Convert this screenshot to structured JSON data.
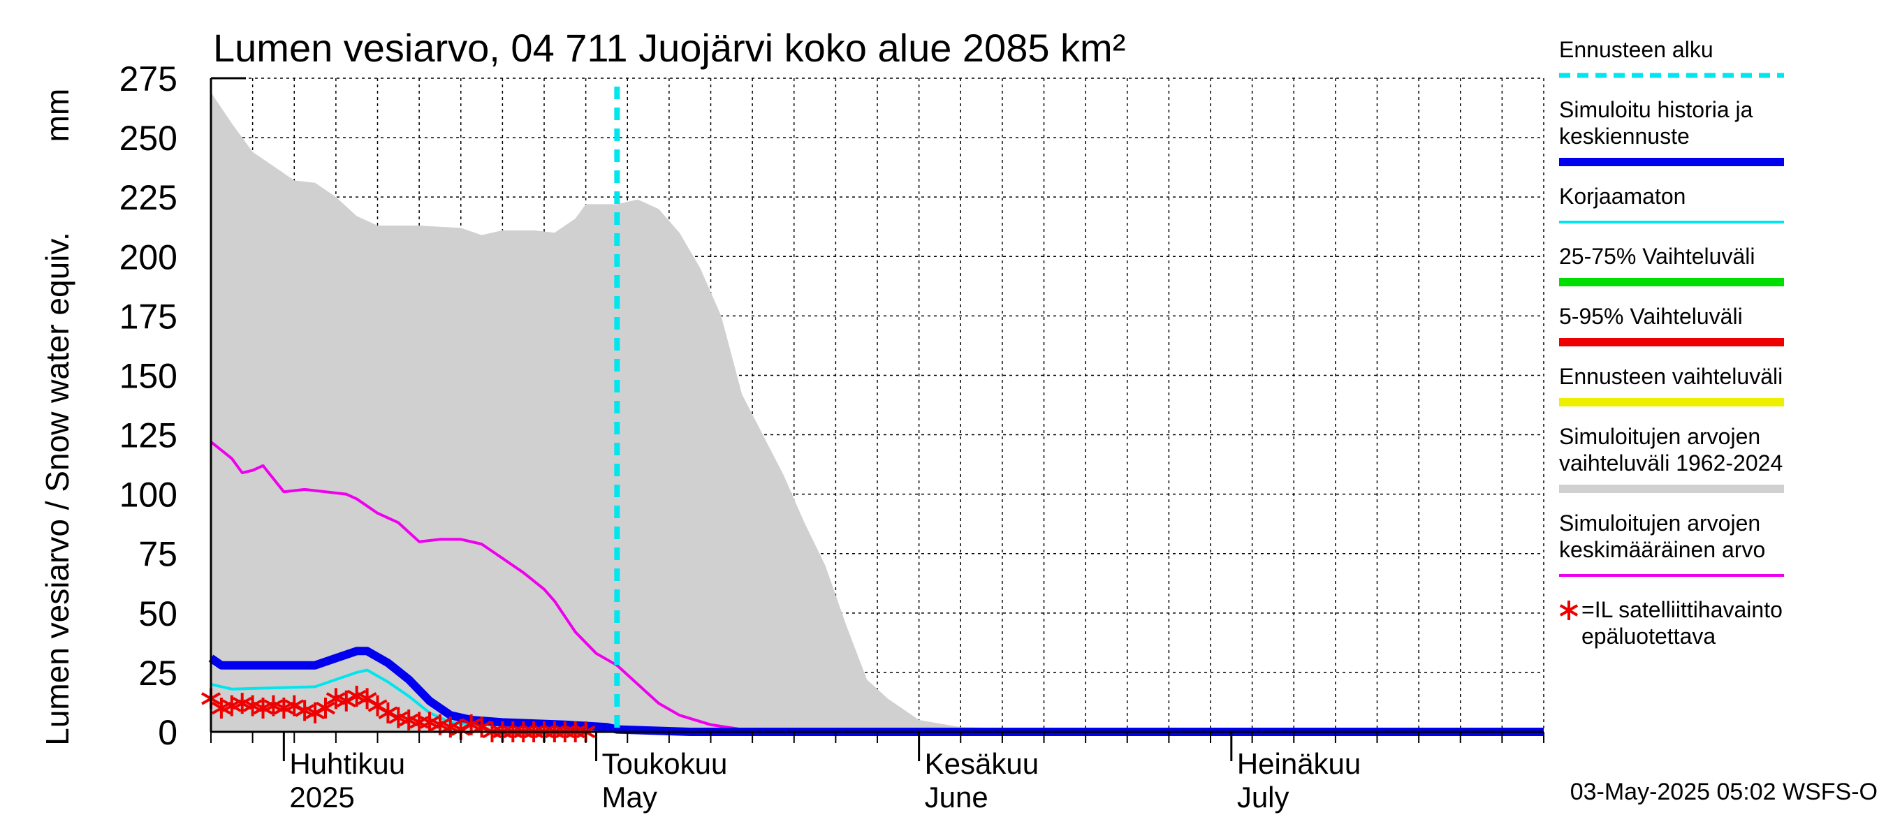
{
  "chart_data": {
    "type": "area",
    "title": "Lumen vesiarvo, 04 711 Juojärvi koko alue 2085 km²",
    "ylabel": "Lumen vesiarvo / Snow water equiv.",
    "yunit": "mm",
    "ylim": [
      0,
      275
    ],
    "yticks": [
      "0",
      "25",
      "50",
      "75",
      "100",
      "125",
      "150",
      "175",
      "200",
      "225",
      "250",
      "275"
    ],
    "xlim": [
      "2025-03-25",
      "2025-07-31"
    ],
    "months": [
      {
        "top": "Huhtikuu",
        "bottom": "2025",
        "start": "2025-04-01"
      },
      {
        "top": "Toukokuu",
        "bottom": "May",
        "start": "2025-05-01"
      },
      {
        "top": "Kesäkuu",
        "bottom": "June",
        "start": "2025-06-01"
      },
      {
        "top": "Heinäkuu",
        "bottom": "July",
        "start": "2025-07-01"
      }
    ],
    "forecast_start": "2025-05-03",
    "grid": true,
    "legend_position": "right",
    "footer": "03-May-2025 05:02 WSFS-O",
    "legend": [
      {
        "label": "Ennusteen alku",
        "color": "#00e5ee",
        "style": "dashed"
      },
      {
        "label": "Simuloitu historia ja keskiennuste",
        "color": "#0000ee",
        "style": "thick"
      },
      {
        "label": "Korjaamaton",
        "color": "#00e5ee",
        "style": "line"
      },
      {
        "label": "25-75% Vaihteluväli",
        "color": "#00dd00",
        "style": "thick"
      },
      {
        "label": "5-95% Vaihteluväli",
        "color": "#ee0000",
        "style": "thick"
      },
      {
        "label": "Ennusteen vaihteluväli",
        "color": "#eeee00",
        "style": "thick"
      },
      {
        "label": "Simuloitujen arvojen vaihteluväli 1962-2024",
        "color": "#d0d0d0",
        "style": "thick"
      },
      {
        "label": "Simuloitujen arvojen keskimääräinen arvo",
        "color": "#ee00ee",
        "style": "line"
      },
      {
        "label": "=IL satelliittihavainto epäluotettava",
        "color": "#ee0000",
        "style": "star"
      }
    ],
    "series": [
      {
        "name": "Simuloitujen arvojen vaihteluväli 1962-2024",
        "type": "band",
        "color": "#d0d0d0",
        "points": [
          [
            "2025-03-25",
            0,
            269
          ],
          [
            "2025-03-27",
            0,
            256
          ],
          [
            "2025-03-29",
            0,
            244
          ],
          [
            "2025-03-31",
            0,
            238
          ],
          [
            "2025-04-02",
            0,
            232
          ],
          [
            "2025-04-04",
            0,
            231
          ],
          [
            "2025-04-06",
            0,
            225
          ],
          [
            "2025-04-08",
            0,
            217
          ],
          [
            "2025-04-10",
            0,
            213
          ],
          [
            "2025-04-14",
            0,
            213
          ],
          [
            "2025-04-18",
            0,
            212
          ],
          [
            "2025-04-20",
            0,
            209
          ],
          [
            "2025-04-22",
            0,
            211
          ],
          [
            "2025-04-25",
            0,
            211
          ],
          [
            "2025-04-27",
            0,
            210
          ],
          [
            "2025-04-29",
            0,
            216
          ],
          [
            "2025-04-30",
            0,
            222
          ],
          [
            "2025-05-03",
            0,
            222
          ],
          [
            "2025-05-05",
            0,
            224
          ],
          [
            "2025-05-07",
            0,
            220
          ],
          [
            "2025-05-09",
            0,
            210
          ],
          [
            "2025-05-11",
            0,
            195
          ],
          [
            "2025-05-13",
            0,
            175
          ],
          [
            "2025-05-15",
            0,
            142
          ],
          [
            "2025-05-17",
            0,
            125
          ],
          [
            "2025-05-19",
            0,
            108
          ],
          [
            "2025-05-21",
            0,
            88
          ],
          [
            "2025-05-23",
            0,
            70
          ],
          [
            "2025-05-25",
            0,
            45
          ],
          [
            "2025-05-27",
            0,
            22
          ],
          [
            "2025-05-29",
            0,
            14
          ],
          [
            "2025-06-01",
            0,
            5
          ],
          [
            "2025-06-05",
            0,
            2
          ],
          [
            "2025-06-15",
            0,
            1
          ],
          [
            "2025-07-31",
            0,
            1
          ]
        ]
      },
      {
        "name": "Simuloitujen arvojen keskimääräinen arvo",
        "type": "line",
        "color": "#ee00ee",
        "points": [
          [
            "2025-03-25",
            122
          ],
          [
            "2025-03-27",
            115
          ],
          [
            "2025-03-28",
            109
          ],
          [
            "2025-03-29",
            110
          ],
          [
            "2025-03-30",
            112
          ],
          [
            "2025-04-01",
            101
          ],
          [
            "2025-04-03",
            102
          ],
          [
            "2025-04-05",
            101
          ],
          [
            "2025-04-07",
            100
          ],
          [
            "2025-04-08",
            98
          ],
          [
            "2025-04-10",
            92
          ],
          [
            "2025-04-12",
            88
          ],
          [
            "2025-04-14",
            80
          ],
          [
            "2025-04-16",
            81
          ],
          [
            "2025-04-18",
            81
          ],
          [
            "2025-04-20",
            79
          ],
          [
            "2025-04-22",
            73
          ],
          [
            "2025-04-24",
            67
          ],
          [
            "2025-04-26",
            60
          ],
          [
            "2025-04-27",
            55
          ],
          [
            "2025-04-29",
            42
          ],
          [
            "2025-05-01",
            33
          ],
          [
            "2025-05-03",
            28
          ],
          [
            "2025-05-05",
            20
          ],
          [
            "2025-05-07",
            12
          ],
          [
            "2025-05-09",
            7
          ],
          [
            "2025-05-12",
            3
          ],
          [
            "2025-05-15",
            1
          ],
          [
            "2025-05-20",
            0
          ],
          [
            "2025-07-31",
            0
          ]
        ]
      },
      {
        "name": "Korjaamaton",
        "type": "line",
        "color": "#00e5ee",
        "points": [
          [
            "2025-03-25",
            20
          ],
          [
            "2025-03-27",
            18
          ],
          [
            "2025-04-04",
            19
          ],
          [
            "2025-04-06",
            22
          ],
          [
            "2025-04-08",
            25
          ],
          [
            "2025-04-09",
            26
          ],
          [
            "2025-04-11",
            21
          ],
          [
            "2025-04-13",
            15
          ],
          [
            "2025-04-15",
            8
          ],
          [
            "2025-04-17",
            4
          ],
          [
            "2025-04-19",
            3
          ],
          [
            "2025-04-22",
            3
          ],
          [
            "2025-04-29",
            2
          ],
          [
            "2025-05-03",
            1
          ],
          [
            "2025-05-10",
            0
          ],
          [
            "2025-07-31",
            0
          ]
        ]
      },
      {
        "name": "Simuloitu historia ja keskiennuste",
        "type": "line",
        "color": "#0000ee",
        "points": [
          [
            "2025-03-25",
            31
          ],
          [
            "2025-03-26",
            28
          ],
          [
            "2025-04-04",
            28
          ],
          [
            "2025-04-06",
            31
          ],
          [
            "2025-04-08",
            34
          ],
          [
            "2025-04-09",
            34
          ],
          [
            "2025-04-11",
            29
          ],
          [
            "2025-04-13",
            22
          ],
          [
            "2025-04-15",
            13
          ],
          [
            "2025-04-17",
            7
          ],
          [
            "2025-04-19",
            5
          ],
          [
            "2025-04-22",
            4
          ],
          [
            "2025-04-28",
            3
          ],
          [
            "2025-05-02",
            2
          ],
          [
            "2025-05-03",
            1
          ],
          [
            "2025-05-10",
            0
          ],
          [
            "2025-07-31",
            0
          ]
        ]
      },
      {
        "name": "=IL satelliittihavainto epäluotettava",
        "type": "scatter",
        "color": "#ee0000",
        "points": [
          [
            "2025-03-25",
            14
          ],
          [
            "2025-03-26",
            10
          ],
          [
            "2025-03-27",
            11
          ],
          [
            "2025-03-28",
            12
          ],
          [
            "2025-03-29",
            11
          ],
          [
            "2025-03-30",
            10
          ],
          [
            "2025-03-31",
            11
          ],
          [
            "2025-04-01",
            10
          ],
          [
            "2025-04-02",
            11
          ],
          [
            "2025-04-03",
            9
          ],
          [
            "2025-04-04",
            8
          ],
          [
            "2025-04-05",
            10
          ],
          [
            "2025-04-06",
            14
          ],
          [
            "2025-04-07",
            13
          ],
          [
            "2025-04-08",
            15
          ],
          [
            "2025-04-09",
            14
          ],
          [
            "2025-04-10",
            11
          ],
          [
            "2025-04-11",
            8
          ],
          [
            "2025-04-12",
            6
          ],
          [
            "2025-04-13",
            5
          ],
          [
            "2025-04-14",
            4
          ],
          [
            "2025-04-15",
            4
          ],
          [
            "2025-04-16",
            3
          ],
          [
            "2025-04-17",
            2
          ],
          [
            "2025-04-18",
            1
          ],
          [
            "2025-04-19",
            3
          ],
          [
            "2025-04-20",
            2
          ],
          [
            "2025-04-21",
            0
          ],
          [
            "2025-04-22",
            0
          ],
          [
            "2025-04-23",
            0
          ],
          [
            "2025-04-24",
            0
          ],
          [
            "2025-04-25",
            0
          ],
          [
            "2025-04-26",
            0
          ],
          [
            "2025-04-27",
            0
          ],
          [
            "2025-04-28",
            0
          ],
          [
            "2025-04-29",
            0
          ],
          [
            "2025-04-30",
            0
          ]
        ]
      }
    ]
  }
}
